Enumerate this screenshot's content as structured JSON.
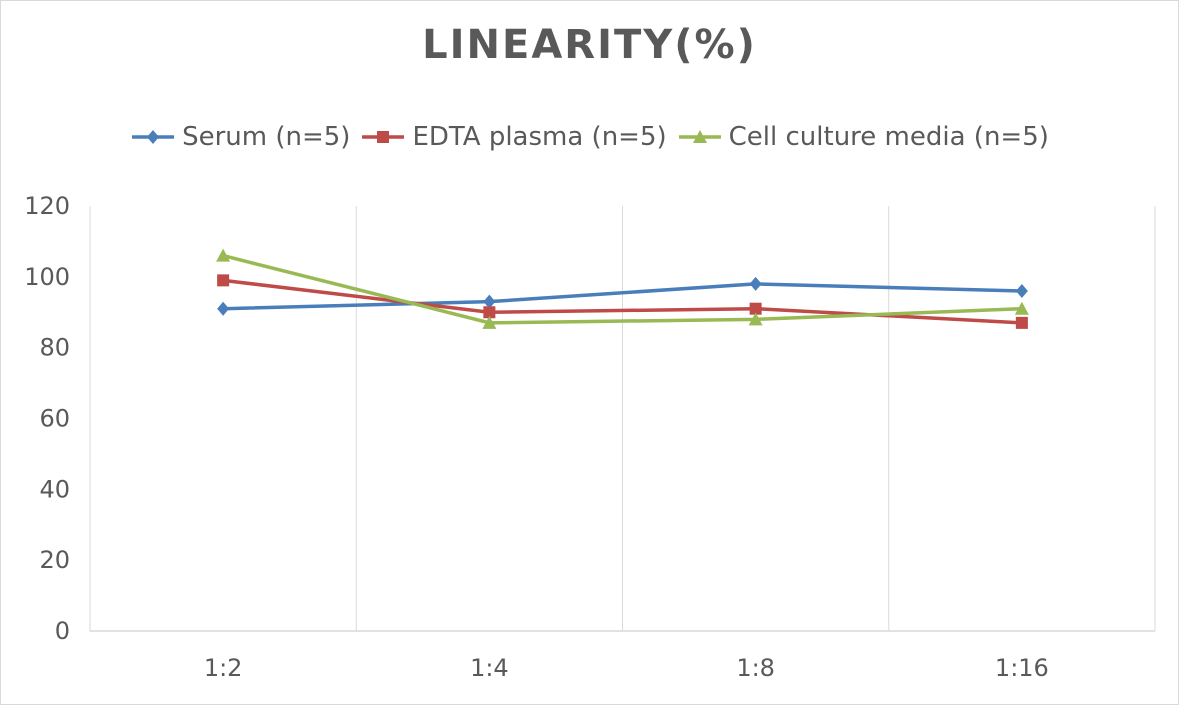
{
  "chart_data": {
    "type": "line",
    "title": "LINEARITY(%)",
    "categories": [
      "1:2",
      "1:4",
      "1:8",
      "1:16"
    ],
    "ylim": [
      0,
      120
    ],
    "yticks": [
      "0",
      "20",
      "40",
      "60",
      "80",
      "100",
      "120"
    ],
    "grid": "vertical",
    "legend": "top",
    "series": [
      {
        "name": "Serum (n=5)",
        "values": [
          91,
          93,
          98,
          96
        ],
        "color": "#4a7ebb",
        "marker": "diamond"
      },
      {
        "name": "EDTA plasma (n=5)",
        "values": [
          99,
          90,
          91,
          87
        ],
        "color": "#be4b48",
        "marker": "square"
      },
      {
        "name": "Cell culture media (n=5)",
        "values": [
          106,
          87,
          88,
          91
        ],
        "color": "#98b954",
        "marker": "triangle"
      }
    ]
  }
}
